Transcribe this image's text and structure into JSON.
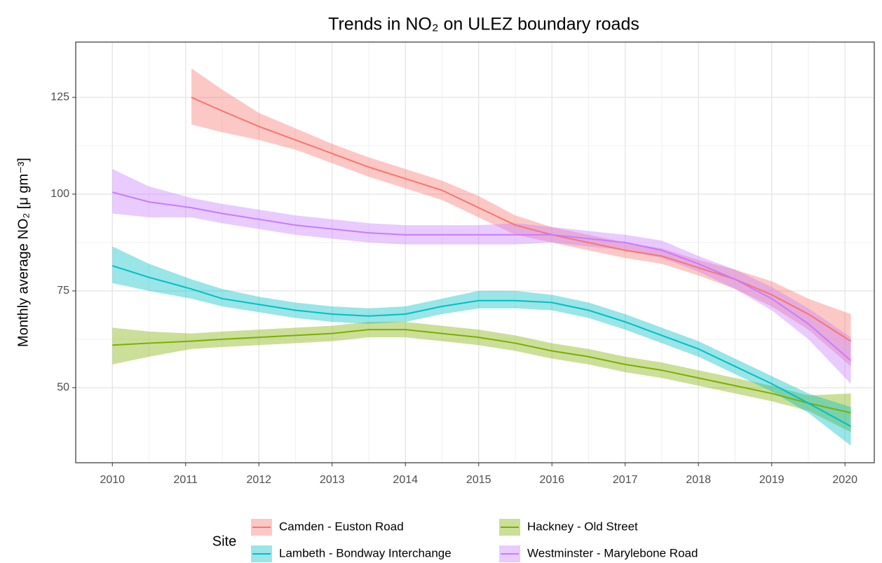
{
  "chart_data": {
    "type": "line",
    "title": "Trends in NO₂ on ULEZ boundary roads",
    "y_label": "Monthly average NO₂ [μ gm⁻³]",
    "legend_title": "Site",
    "x": [
      2010,
      2010.5,
      2011.08,
      2011.5,
      2012,
      2012.5,
      2013,
      2013.5,
      2014,
      2014.5,
      2015,
      2015.5,
      2016,
      2016.5,
      2017,
      2017.5,
      2018,
      2018.5,
      2019,
      2019.5,
      2020.08
    ],
    "series": [
      {
        "name": "Camden - Euston Road",
        "color": "#F8766D",
        "values": [
          null,
          null,
          125,
          121.5,
          117.5,
          114,
          110.5,
          107,
          104,
          101,
          96.5,
          92,
          89.5,
          87.5,
          85.5,
          84,
          81,
          78,
          74,
          69,
          62
        ],
        "lower": [
          null,
          null,
          118,
          116,
          114,
          111.5,
          108,
          104.5,
          101.5,
          98.5,
          94,
          89.5,
          87.5,
          85.5,
          83.5,
          82,
          79,
          75.5,
          71,
          65,
          55.5
        ],
        "upper": [
          null,
          null,
          132.5,
          127,
          121,
          117,
          113,
          109.5,
          106.5,
          103.5,
          99.5,
          94.5,
          91.5,
          89.5,
          87.5,
          86,
          83,
          80.5,
          77.5,
          73,
          69
        ]
      },
      {
        "name": "Hackney - Old Street",
        "color": "#7CAE00",
        "values": [
          61,
          61.5,
          62,
          62.5,
          63,
          63.5,
          64,
          65,
          65,
          64,
          63,
          61.5,
          59.5,
          58,
          56,
          54.5,
          52.5,
          50.5,
          48.5,
          46,
          43.5
        ],
        "lower": [
          56,
          58,
          60,
          60.5,
          61,
          61.5,
          62,
          63,
          63,
          62,
          61,
          59.5,
          57.5,
          56,
          54,
          52.5,
          50.5,
          48.5,
          46.5,
          44,
          38.5
        ],
        "upper": [
          65.5,
          64.5,
          64,
          64.5,
          65,
          65.5,
          66,
          67,
          67,
          66,
          65,
          63.5,
          61.5,
          60,
          58,
          56.5,
          54.5,
          52.5,
          50.5,
          48,
          48.5
        ]
      },
      {
        "name": "Lambeth - Bondway Interchange",
        "color": "#00BFC4",
        "values": [
          81.5,
          78.5,
          75.5,
          73,
          71.5,
          70,
          69,
          68.5,
          69,
          71,
          72.5,
          72.5,
          72,
          70,
          67,
          63.5,
          60,
          55.5,
          51,
          46,
          40
        ],
        "lower": [
          77,
          75,
          73,
          71,
          69.5,
          68,
          67,
          66.5,
          67,
          69,
          70.5,
          70.5,
          70,
          68,
          65,
          61.5,
          58,
          53.5,
          49,
          43.5,
          35
        ],
        "upper": [
          86.5,
          82,
          78,
          75.5,
          73.5,
          72,
          71,
          70.5,
          71,
          73,
          75,
          75,
          74,
          72,
          69,
          65.5,
          62,
          57.5,
          53,
          48.5,
          45
        ]
      },
      {
        "name": "Westminster - Marylebone Road",
        "color": "#C77CFF",
        "values": [
          100.5,
          98,
          96.5,
          95,
          93.5,
          92,
          91,
          90,
          89.5,
          89.5,
          89.5,
          89.5,
          89.5,
          88.5,
          87.5,
          85.5,
          82,
          78,
          73,
          66.5,
          57
        ],
        "lower": [
          95,
          94,
          94,
          92.5,
          91,
          89.5,
          88.5,
          87.5,
          87,
          87,
          87,
          87,
          87.5,
          86.5,
          85.5,
          83.5,
          80,
          75.5,
          70,
          62.5,
          51
        ],
        "upper": [
          106.5,
          102,
          99,
          97.5,
          96,
          94.5,
          93.5,
          92.5,
          92,
          92,
          92,
          92.5,
          91.5,
          90.5,
          89.5,
          88,
          84,
          80.5,
          76,
          70.5,
          63
        ]
      }
    ],
    "xlim": [
      2009.5,
      2020.4
    ],
    "xticks": [
      2010,
      2011,
      2012,
      2013,
      2014,
      2015,
      2016,
      2017,
      2018,
      2019,
      2020
    ],
    "ylim": [
      30.6,
      139.3
    ],
    "yticks": [
      50,
      75,
      100,
      125
    ],
    "grid": true,
    "legend_position": "bottom"
  }
}
